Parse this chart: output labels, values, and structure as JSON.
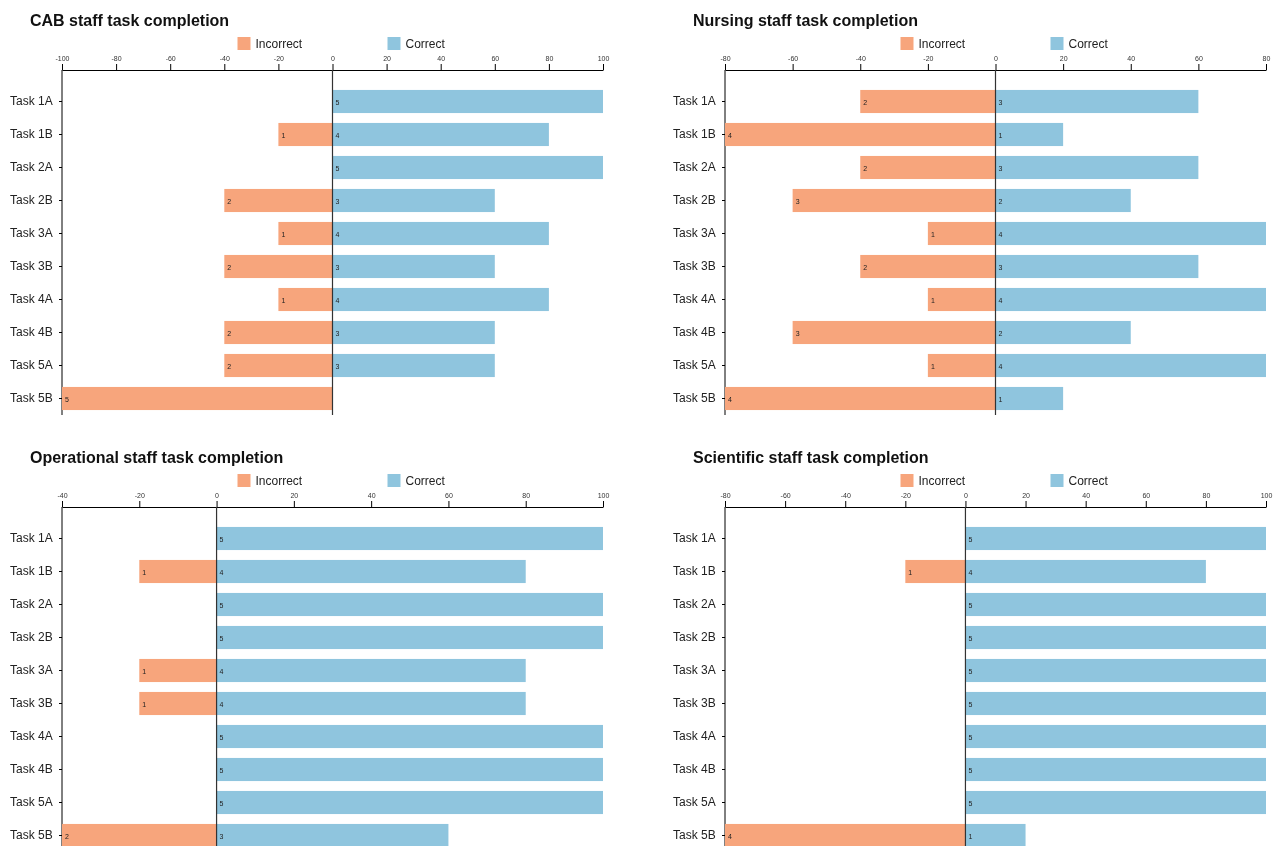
{
  "chart_data": [
    {
      "type": "bar",
      "title": "CAB staff task completion",
      "orientation": "horizontal",
      "stacked": true,
      "legend": "top",
      "categories": [
        "Task 1A",
        "Task 1B",
        "Task 2A",
        "Task 2B",
        "Task 3A",
        "Task 3B",
        "Task 4A",
        "Task 4B",
        "Task 5A",
        "Task 5B"
      ],
      "xlim": [
        -100,
        100
      ],
      "xticks": [
        -100,
        -80,
        -60,
        -40,
        -20,
        0,
        20,
        40,
        60,
        80,
        100
      ],
      "ref_lines": [
        {
          "axis": "x",
          "value": 0,
          "color": "#333333"
        }
      ],
      "series": [
        {
          "name": "Incorrect",
          "color": "#f7a57c",
          "values": [
            0,
            -20,
            0,
            -40,
            -20,
            -40,
            -20,
            -40,
            -40,
            -100
          ]
        },
        {
          "name": "Correct",
          "color": "#8fc5de",
          "values": [
            100,
            80,
            100,
            60,
            80,
            60,
            80,
            60,
            60,
            0
          ]
        }
      ],
      "annotations": [
        {
          "text": "1",
          "x": -20,
          "y": "Task 1B"
        },
        {
          "text": "2",
          "x": -40,
          "y": "Task 2B"
        },
        {
          "text": "1",
          "x": -20,
          "y": "Task 3A"
        },
        {
          "text": "2",
          "x": -40,
          "y": "Task 3B"
        },
        {
          "text": "1",
          "x": -20,
          "y": "Task 4A"
        },
        {
          "text": "2",
          "x": -40,
          "y": "Task 4B"
        },
        {
          "text": "2",
          "x": -40,
          "y": "Task 5A"
        },
        {
          "text": "5",
          "x": -100,
          "y": "Task 5B"
        },
        {
          "text": "5",
          "x": 0,
          "y": "Task 1A"
        },
        {
          "text": "4",
          "x": 0,
          "y": "Task 1B"
        },
        {
          "text": "5",
          "x": 0,
          "y": "Task 2A"
        },
        {
          "text": "3",
          "x": 0,
          "y": "Task 2B"
        },
        {
          "text": "4",
          "x": 0,
          "y": "Task 3A"
        },
        {
          "text": "3",
          "x": 0,
          "y": "Task 3B"
        },
        {
          "text": "4",
          "x": 0,
          "y": "Task 4A"
        },
        {
          "text": "3",
          "x": 0,
          "y": "Task 4B"
        },
        {
          "text": "3",
          "x": 0,
          "y": "Task 5A"
        }
      ]
    },
    {
      "type": "bar",
      "title": "Nursing staff task completion",
      "orientation": "horizontal",
      "stacked": true,
      "legend": "top",
      "categories": [
        "Task 1A",
        "Task 1B",
        "Task 2A",
        "Task 2B",
        "Task 3A",
        "Task 3B",
        "Task 4A",
        "Task 4B",
        "Task 5A",
        "Task 5B"
      ],
      "xlim": [
        -80,
        80
      ],
      "xticks": [
        -80,
        -60,
        -40,
        -20,
        0,
        20,
        40,
        60,
        80
      ],
      "ref_lines": [
        {
          "axis": "x",
          "value": 0,
          "color": "#333333"
        }
      ],
      "series": [
        {
          "name": "Incorrect",
          "color": "#f7a57c",
          "values": [
            -40,
            -80,
            -40,
            -60,
            -20,
            -40,
            -20,
            -60,
            -20,
            -80
          ]
        },
        {
          "name": "Correct",
          "color": "#8fc5de",
          "values": [
            60,
            20,
            60,
            40,
            80,
            60,
            80,
            40,
            80,
            20
          ]
        }
      ],
      "annotations": [
        {
          "text": "2",
          "x": -40,
          "y": "Task 1A"
        },
        {
          "text": "4",
          "x": -80,
          "y": "Task 1B"
        },
        {
          "text": "2",
          "x": -40,
          "y": "Task 2A"
        },
        {
          "text": "3",
          "x": -60,
          "y": "Task 2B"
        },
        {
          "text": "1",
          "x": -20,
          "y": "Task 3A"
        },
        {
          "text": "2",
          "x": -40,
          "y": "Task 3B"
        },
        {
          "text": "1",
          "x": -20,
          "y": "Task 4A"
        },
        {
          "text": "3",
          "x": -60,
          "y": "Task 4B"
        },
        {
          "text": "1",
          "x": -20,
          "y": "Task 5A"
        },
        {
          "text": "4",
          "x": -80,
          "y": "Task 5B"
        },
        {
          "text": "3",
          "x": 0,
          "y": "Task 1A"
        },
        {
          "text": "1",
          "x": 0,
          "y": "Task 1B"
        },
        {
          "text": "3",
          "x": 0,
          "y": "Task 2A"
        },
        {
          "text": "2",
          "x": 0,
          "y": "Task 2B"
        },
        {
          "text": "4",
          "x": 0,
          "y": "Task 3A"
        },
        {
          "text": "3",
          "x": 0,
          "y": "Task 3B"
        },
        {
          "text": "4",
          "x": 0,
          "y": "Task 4A"
        },
        {
          "text": "2",
          "x": 0,
          "y": "Task 4B"
        },
        {
          "text": "4",
          "x": 0,
          "y": "Task 5A"
        },
        {
          "text": "1",
          "x": 0,
          "y": "Task 5B"
        }
      ]
    },
    {
      "type": "bar",
      "title": "Operational staff task completion",
      "orientation": "horizontal",
      "stacked": true,
      "legend": "top",
      "categories": [
        "Task 1A",
        "Task 1B",
        "Task 2A",
        "Task 2B",
        "Task 3A",
        "Task 3B",
        "Task 4A",
        "Task 4B",
        "Task 5A",
        "Task 5B"
      ],
      "xlim": [
        -40,
        100
      ],
      "xticks": [
        -40,
        -20,
        0,
        20,
        40,
        60,
        80,
        100
      ],
      "ref_lines": [
        {
          "axis": "x",
          "value": 0,
          "color": "#333333"
        }
      ],
      "series": [
        {
          "name": "Incorrect",
          "color": "#f7a57c",
          "values": [
            0,
            -20,
            0,
            0,
            -20,
            -20,
            0,
            0,
            0,
            -40
          ]
        },
        {
          "name": "Correct",
          "color": "#8fc5de",
          "values": [
            100,
            80,
            100,
            100,
            80,
            80,
            100,
            100,
            100,
            60
          ]
        }
      ],
      "annotations": [
        {
          "text": "1",
          "x": -20,
          "y": "Task 1B"
        },
        {
          "text": "1",
          "x": -20,
          "y": "Task 3A"
        },
        {
          "text": "1",
          "x": -20,
          "y": "Task 3B"
        },
        {
          "text": "2",
          "x": -40,
          "y": "Task 5B"
        },
        {
          "text": "5",
          "x": 0,
          "y": "Task 1A"
        },
        {
          "text": "4",
          "x": 0,
          "y": "Task 1B"
        },
        {
          "text": "5",
          "x": 0,
          "y": "Task 2A"
        },
        {
          "text": "5",
          "x": 0,
          "y": "Task 2B"
        },
        {
          "text": "4",
          "x": 0,
          "y": "Task 3A"
        },
        {
          "text": "4",
          "x": 0,
          "y": "Task 3B"
        },
        {
          "text": "5",
          "x": 0,
          "y": "Task 4A"
        },
        {
          "text": "5",
          "x": 0,
          "y": "Task 4B"
        },
        {
          "text": "5",
          "x": 0,
          "y": "Task 5A"
        },
        {
          "text": "3",
          "x": 0,
          "y": "Task 5B"
        }
      ]
    },
    {
      "type": "bar",
      "title": "Scientific staff task completion",
      "orientation": "horizontal",
      "stacked": true,
      "legend": "top",
      "categories": [
        "Task 1A",
        "Task 1B",
        "Task 2A",
        "Task 2B",
        "Task 3A",
        "Task 3B",
        "Task 4A",
        "Task 4B",
        "Task 5A",
        "Task 5B"
      ],
      "xlim": [
        -80,
        100
      ],
      "xticks": [
        -80,
        -60,
        -40,
        -20,
        0,
        20,
        40,
        60,
        80,
        100
      ],
      "ref_lines": [
        {
          "axis": "x",
          "value": 0,
          "color": "#333333"
        }
      ],
      "series": [
        {
          "name": "Incorrect",
          "color": "#f7a57c",
          "values": [
            0,
            -20,
            0,
            0,
            0,
            0,
            0,
            0,
            0,
            -80
          ]
        },
        {
          "name": "Correct",
          "color": "#8fc5de",
          "values": [
            100,
            80,
            100,
            100,
            100,
            100,
            100,
            100,
            100,
            20
          ]
        }
      ],
      "annotations": [
        {
          "text": "1",
          "x": -20,
          "y": "Task 1B"
        },
        {
          "text": "4",
          "x": -80,
          "y": "Task 5B"
        },
        {
          "text": "5",
          "x": 0,
          "y": "Task 1A"
        },
        {
          "text": "4",
          "x": 0,
          "y": "Task 1B"
        },
        {
          "text": "5",
          "x": 0,
          "y": "Task 2A"
        },
        {
          "text": "5",
          "x": 0,
          "y": "Task 2B"
        },
        {
          "text": "5",
          "x": 0,
          "y": "Task 3A"
        },
        {
          "text": "5",
          "x": 0,
          "y": "Task 3B"
        },
        {
          "text": "5",
          "x": 0,
          "y": "Task 4A"
        },
        {
          "text": "5",
          "x": 0,
          "y": "Task 4B"
        },
        {
          "text": "5",
          "x": 0,
          "y": "Task 5A"
        },
        {
          "text": "1",
          "x": 0,
          "y": "Task 5B"
        }
      ]
    }
  ]
}
